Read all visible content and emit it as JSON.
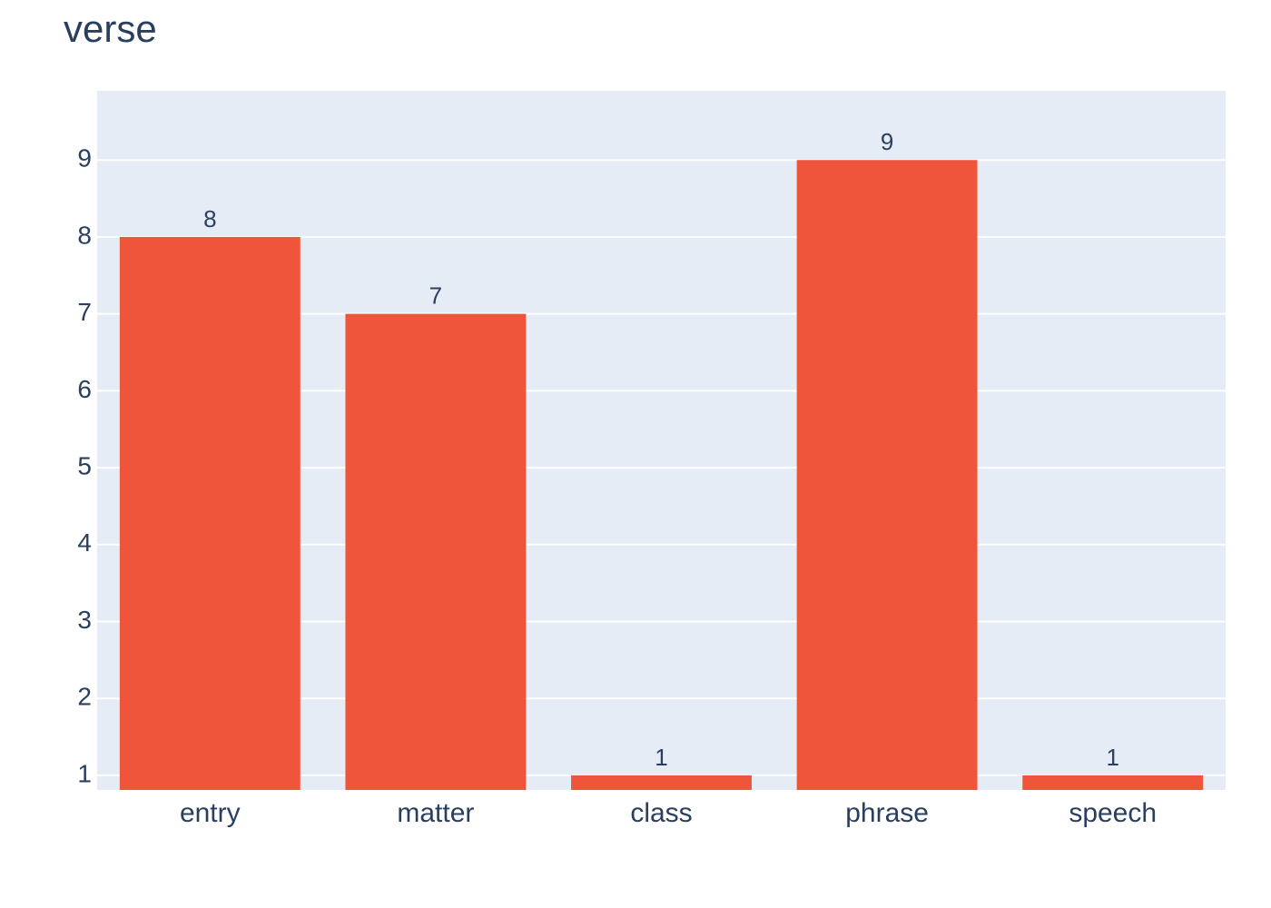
{
  "chart_data": {
    "type": "bar",
    "title": "verse",
    "categories": [
      "entry",
      "matter",
      "class",
      "phrase",
      "speech"
    ],
    "values": [
      8,
      7,
      1,
      9,
      1
    ],
    "color": "#ef553b",
    "ylim": [
      0.81,
      9.9
    ],
    "yticks": [
      1,
      2,
      3,
      4,
      5,
      6,
      7,
      8,
      9
    ],
    "grid": true
  }
}
